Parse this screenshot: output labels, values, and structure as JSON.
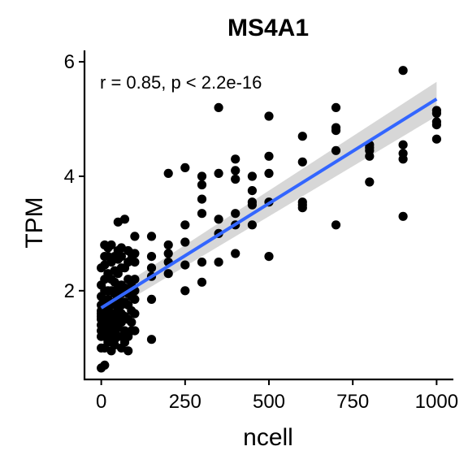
{
  "chart_data": {
    "type": "scatter",
    "title": "MS4A1",
    "xlabel": "ncell",
    "ylabel": "TPM",
    "xlim": [
      -50,
      1050
    ],
    "ylim": [
      0.45,
      6.2
    ],
    "xticks": [
      0,
      250,
      500,
      750,
      1000
    ],
    "xtick_labels": [
      "0",
      "250",
      "500",
      "750",
      "1000"
    ],
    "yticks": [
      2,
      4,
      6
    ],
    "ytick_labels": [
      "2",
      "4",
      "6"
    ],
    "annotation": "r = 0.85, p < 2.2e-16",
    "grid": false,
    "point_color": "#000000",
    "line_color": "#3366FF",
    "band_color": "#D3D3D3",
    "regression": {
      "x": [
        0,
        1000
      ],
      "y": [
        1.7,
        5.35
      ],
      "ci_low": [
        1.55,
        5.05
      ],
      "ci_high": [
        1.85,
        5.65
      ]
    },
    "points": {
      "x": [
        0,
        0,
        0,
        0,
        0,
        0,
        0,
        0,
        0,
        0,
        0,
        0,
        0,
        10,
        10,
        10,
        10,
        10,
        10,
        10,
        10,
        10,
        10,
        10,
        10,
        10,
        10,
        20,
        20,
        20,
        20,
        20,
        20,
        20,
        20,
        20,
        20,
        30,
        30,
        30,
        30,
        30,
        30,
        30,
        30,
        30,
        30,
        40,
        40,
        40,
        40,
        40,
        40,
        40,
        40,
        40,
        40,
        50,
        50,
        50,
        50,
        50,
        50,
        50,
        50,
        50,
        50,
        50,
        60,
        60,
        60,
        60,
        60,
        60,
        60,
        60,
        60,
        60,
        60,
        70,
        70,
        70,
        70,
        70,
        70,
        70,
        80,
        80,
        80,
        80,
        80,
        80,
        80,
        80,
        90,
        90,
        90,
        90,
        90,
        90,
        90,
        100,
        100,
        100,
        100,
        100,
        100,
        100,
        100,
        150,
        150,
        150,
        150,
        150,
        150,
        200,
        200,
        200,
        200,
        200,
        250,
        250,
        250,
        250,
        250,
        300,
        300,
        300,
        300,
        300,
        300,
        350,
        350,
        350,
        350,
        350,
        400,
        400,
        400,
        400,
        400,
        400,
        450,
        450,
        450,
        450,
        450,
        500,
        500,
        500,
        500,
        500,
        600,
        600,
        600,
        600,
        600,
        700,
        700,
        700,
        700,
        700,
        800,
        800,
        800,
        800,
        800,
        900,
        900,
        900,
        900,
        900,
        1000,
        1000,
        1000,
        1000,
        1000
      ],
      "y": [
        0.65,
        1.0,
        1.2,
        1.3,
        1.4,
        1.5,
        1.55,
        1.6,
        1.75,
        1.9,
        2.1,
        2.4,
        1.65,
        0.7,
        1.0,
        1.2,
        1.3,
        1.45,
        1.6,
        1.7,
        1.8,
        2.0,
        2.2,
        2.45,
        2.6,
        2.8,
        1.55,
        1.1,
        1.25,
        1.4,
        1.55,
        1.7,
        1.85,
        2.0,
        2.3,
        2.6,
        2.75,
        0.95,
        1.2,
        1.35,
        1.5,
        1.6,
        1.75,
        2.0,
        2.2,
        2.5,
        2.8,
        1.05,
        1.3,
        1.45,
        1.6,
        1.8,
        1.95,
        2.15,
        2.35,
        2.6,
        1.15,
        1.2,
        1.4,
        1.55,
        1.7,
        1.85,
        2.05,
        2.3,
        2.55,
        2.7,
        3.2,
        1.35,
        1.0,
        1.2,
        1.45,
        1.6,
        1.75,
        1.95,
        2.1,
        2.4,
        2.6,
        2.75,
        1.5,
        1.1,
        1.3,
        1.55,
        1.8,
        2.05,
        2.4,
        3.25,
        0.95,
        1.2,
        1.5,
        1.75,
        1.95,
        2.2,
        2.5,
        2.7,
        1.3,
        1.45,
        1.65,
        1.9,
        2.1,
        2.55,
        2.65,
        1.3,
        1.6,
        1.85,
        2.0,
        2.2,
        2.5,
        2.65,
        2.95,
        1.15,
        1.85,
        2.25,
        2.4,
        2.6,
        2.95,
        2.3,
        2.5,
        2.65,
        2.8,
        4.05,
        2.0,
        2.45,
        2.85,
        3.15,
        4.15,
        2.15,
        3.35,
        3.6,
        3.85,
        4.0,
        2.5,
        2.5,
        3.0,
        3.25,
        4.05,
        5.2,
        2.65,
        3.15,
        3.35,
        3.95,
        4.1,
        4.3,
        3.15,
        3.5,
        3.75,
        4.0,
        3.55,
        2.6,
        3.55,
        4.05,
        4.35,
        5.05,
        3.45,
        3.55,
        4.25,
        4.7,
        3.5,
        3.15,
        4.45,
        4.8,
        4.85,
        5.2,
        3.9,
        4.35,
        4.45,
        4.5,
        4.55,
        3.3,
        4.3,
        4.4,
        4.55,
        5.85,
        4.65,
        4.9,
        4.95,
        5.1,
        5.15
      ]
    }
  }
}
